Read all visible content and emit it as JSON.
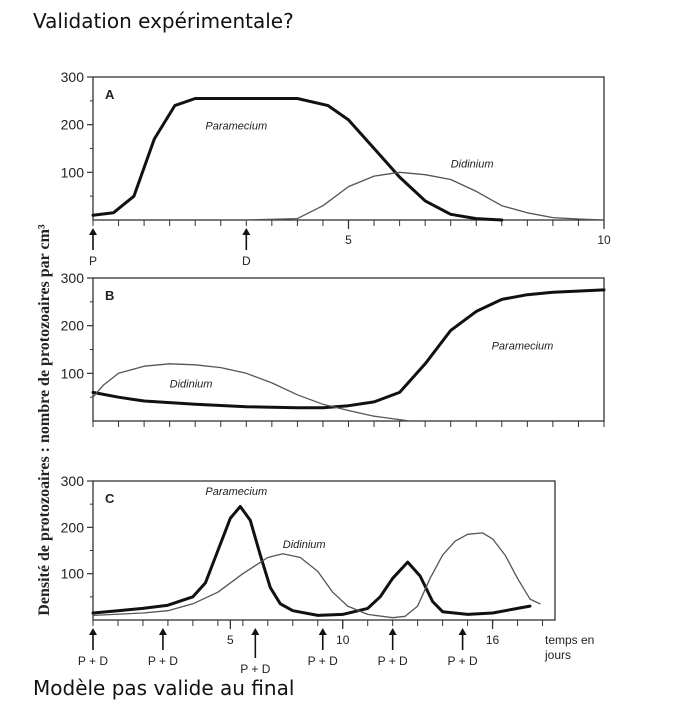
{
  "heading": "Validation expérimentale?",
  "footer": "Modèle pas valide au final",
  "chart_data": {
    "type": "line",
    "ylabel": "Densité de protozoaires : nombre de protozoaires par cm³",
    "yticks": [
      "100",
      "200",
      "300"
    ],
    "panels": [
      {
        "letter": "A",
        "xlim": [
          0,
          10
        ],
        "ylim": [
          0,
          300
        ],
        "xticks": [
          {
            "x": 5,
            "label": "5"
          },
          {
            "x": 10,
            "label": "10"
          }
        ],
        "arrows": [
          {
            "x": 0,
            "label": "P"
          },
          {
            "x": 3,
            "label": "D"
          }
        ],
        "series": [
          {
            "name": "Paramecium",
            "style": "bold",
            "label_at": [
              2.2,
              190
            ],
            "points": [
              [
                0,
                10
              ],
              [
                0.4,
                15
              ],
              [
                0.8,
                50
              ],
              [
                1.2,
                170
              ],
              [
                1.6,
                240
              ],
              [
                2,
                255
              ],
              [
                3,
                255
              ],
              [
                4,
                255
              ],
              [
                4.6,
                240
              ],
              [
                5,
                210
              ],
              [
                5.5,
                150
              ],
              [
                6,
                90
              ],
              [
                6.5,
                40
              ],
              [
                7,
                12
              ],
              [
                7.5,
                3
              ],
              [
                8,
                0
              ]
            ]
          },
          {
            "name": "Didinium",
            "style": "thin",
            "label_at": [
              7,
              110
            ],
            "points": [
              [
                3,
                0
              ],
              [
                4,
                3
              ],
              [
                4.5,
                30
              ],
              [
                5,
                70
              ],
              [
                5.5,
                92
              ],
              [
                6,
                100
              ],
              [
                6.5,
                95
              ],
              [
                7,
                85
              ],
              [
                7.5,
                60
              ],
              [
                8,
                30
              ],
              [
                8.5,
                15
              ],
              [
                9,
                5
              ],
              [
                9.5,
                2
              ],
              [
                10,
                0
              ]
            ]
          }
        ]
      },
      {
        "letter": "B",
        "xlim": [
          0,
          10
        ],
        "ylim": [
          0,
          300
        ],
        "xticks": [],
        "arrows": [],
        "series": [
          {
            "name": "Paramecium",
            "style": "bold",
            "label_at": [
              7.8,
              150
            ],
            "points": [
              [
                0,
                60
              ],
              [
                0.5,
                50
              ],
              [
                1,
                42
              ],
              [
                2,
                35
              ],
              [
                3,
                30
              ],
              [
                4,
                28
              ],
              [
                4.5,
                28
              ],
              [
                5,
                32
              ],
              [
                5.5,
                40
              ],
              [
                6,
                60
              ],
              [
                6.5,
                120
              ],
              [
                7,
                190
              ],
              [
                7.5,
                230
              ],
              [
                8,
                255
              ],
              [
                8.5,
                265
              ],
              [
                9,
                270
              ],
              [
                10,
                275
              ]
            ]
          },
          {
            "name": "Didinium",
            "style": "thin",
            "label_at": [
              1.5,
              70
            ],
            "points": [
              [
                0,
                50
              ],
              [
                0.2,
                75
              ],
              [
                0.5,
                100
              ],
              [
                1,
                115
              ],
              [
                1.5,
                120
              ],
              [
                2,
                118
              ],
              [
                2.5,
                112
              ],
              [
                3,
                100
              ],
              [
                3.5,
                80
              ],
              [
                4,
                55
              ],
              [
                4.5,
                35
              ],
              [
                5,
                22
              ],
              [
                5.5,
                10
              ],
              [
                6,
                3
              ],
              [
                6.2,
                0
              ]
            ]
          }
        ]
      },
      {
        "letter": "C",
        "xlim": [
          0,
          18.5
        ],
        "ylim": [
          0,
          300
        ],
        "xticks": [
          {
            "x": 5.5,
            "label": "5"
          },
          {
            "x": 10,
            "label": "10"
          },
          {
            "x": 16,
            "label": "16"
          }
        ],
        "xlabel": [
          "temps en",
          "jours"
        ],
        "arrows": [
          {
            "x": 0,
            "label": "P + D"
          },
          {
            "x": 2.8,
            "label": "P + D"
          },
          {
            "x": 6.5,
            "label": "P + D",
            "low": true
          },
          {
            "x": 9.2,
            "label": "P + D"
          },
          {
            "x": 12,
            "label": "P + D"
          },
          {
            "x": 14.8,
            "label": "P + D"
          }
        ],
        "series": [
          {
            "name": "Paramecium",
            "style": "bold",
            "label_at": [
              4.5,
              270
            ],
            "points": [
              [
                0,
                15
              ],
              [
                1,
                20
              ],
              [
                2,
                25
              ],
              [
                3,
                32
              ],
              [
                4,
                50
              ],
              [
                4.5,
                80
              ],
              [
                5,
                150
              ],
              [
                5.5,
                220
              ],
              [
                5.9,
                245
              ],
              [
                6.3,
                215
              ],
              [
                6.7,
                140
              ],
              [
                7.1,
                70
              ],
              [
                7.5,
                35
              ],
              [
                8,
                20
              ],
              [
                9,
                10
              ],
              [
                10,
                12
              ],
              [
                11,
                25
              ],
              [
                11.5,
                50
              ],
              [
                12,
                90
              ],
              [
                12.6,
                125
              ],
              [
                13.1,
                95
              ],
              [
                13.6,
                40
              ],
              [
                14,
                18
              ],
              [
                15,
                12
              ],
              [
                16,
                15
              ],
              [
                17,
                25
              ],
              [
                17.5,
                30
              ]
            ]
          },
          {
            "name": "Didinium",
            "style": "thin",
            "label_at": [
              7.6,
              155
            ],
            "points": [
              [
                0,
                10
              ],
              [
                2,
                15
              ],
              [
                3,
                20
              ],
              [
                4,
                35
              ],
              [
                5,
                60
              ],
              [
                6,
                100
              ],
              [
                7,
                135
              ],
              [
                7.6,
                143
              ],
              [
                8.3,
                135
              ],
              [
                9,
                105
              ],
              [
                9.6,
                60
              ],
              [
                10.2,
                30
              ],
              [
                11,
                12
              ],
              [
                12,
                5
              ],
              [
                12.5,
                8
              ],
              [
                13,
                30
              ],
              [
                13.5,
                90
              ],
              [
                14,
                140
              ],
              [
                14.5,
                170
              ],
              [
                15,
                185
              ],
              [
                15.6,
                188
              ],
              [
                16,
                175
              ],
              [
                16.5,
                140
              ],
              [
                17,
                90
              ],
              [
                17.5,
                45
              ],
              [
                17.9,
                35
              ]
            ]
          }
        ]
      }
    ]
  }
}
